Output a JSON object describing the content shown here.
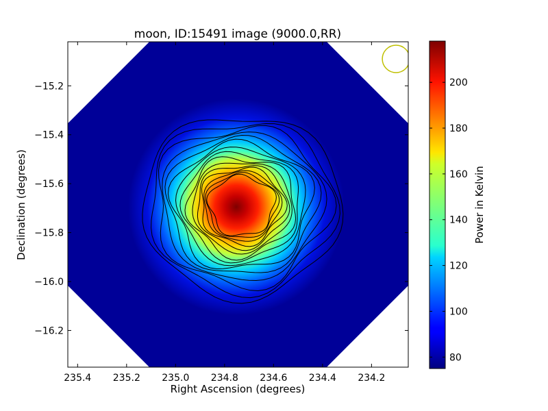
{
  "chart_data": {
    "type": "heatmap",
    "title": "moon, ID:15491 image (9000.0,RR)",
    "xlabel": "Right Ascension (degrees)",
    "ylabel": "Declination (degrees)",
    "xlim": [
      235.44,
      234.05
    ],
    "ylim": [
      -16.35,
      -15.02
    ],
    "x_reversed": true,
    "x_ticks": [
      235.4,
      235.2,
      235.0,
      234.8,
      234.6,
      234.4,
      234.2
    ],
    "x_tick_labels": [
      "235.4",
      "235.2",
      "235.0",
      "234.8",
      "234.6",
      "234.4",
      "234.2"
    ],
    "y_ticks": [
      -15.2,
      -15.4,
      -15.6,
      -15.8,
      -16.0,
      -16.2
    ],
    "y_tick_labels": [
      "−15.2",
      "−15.4",
      "−15.6",
      "−15.8",
      "−16.0",
      "−16.2"
    ],
    "grid": false,
    "colormap": "jet",
    "source_center": {
      "ra": 234.73,
      "dec": -15.69
    },
    "peak_value": 218,
    "background_value": 76,
    "contour_levels": [
      84,
      92,
      100,
      108,
      116,
      124,
      132,
      140,
      148,
      156,
      164,
      172,
      180,
      188,
      196
    ],
    "beam_marker": {
      "ra": 234.1,
      "dec": -15.09,
      "color": "#bfbf00"
    },
    "colorbar": {
      "label": "Power in Kelvin",
      "vmin": 75,
      "vmax": 218,
      "ticks": [
        80,
        100,
        120,
        140,
        160,
        180,
        200
      ],
      "tick_labels": [
        "80",
        "100",
        "120",
        "140",
        "160",
        "180",
        "200"
      ]
    }
  }
}
